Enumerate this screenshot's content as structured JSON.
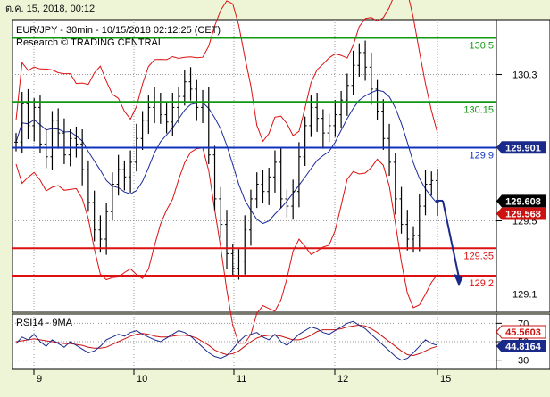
{
  "window": {
    "timestamp": "ต.ค. 15, 2018, 00:12"
  },
  "chart_data": [
    {
      "type": "line",
      "title": "EUR/JPY - 30min - 10/15/2018 02:12:25 (CET)",
      "subtitle": "Research © TRADING CENTRAL",
      "x_ticks": [
        "9",
        "10",
        "11",
        "12",
        "15"
      ],
      "y_ticks": [
        "130.3",
        "129.9",
        "129.5",
        "129.1"
      ],
      "ylim": [
        129.0,
        130.6
      ],
      "levels": [
        {
          "value": 130.5,
          "label": "130.5",
          "color": "#119911"
        },
        {
          "value": 130.15,
          "label": "130.15",
          "color": "#119911"
        },
        {
          "value": 129.9,
          "label": "129.9",
          "color": "#1133bb"
        },
        {
          "value": 129.35,
          "label": "129.35",
          "color": "#dd1111"
        },
        {
          "value": 129.2,
          "label": "129.2",
          "color": "#dd1111"
        }
      ],
      "price_tags": [
        {
          "value": 129.901,
          "label": "129.901",
          "bg": "#1a2a8a",
          "fg": "#ffffff"
        },
        {
          "value": 129.608,
          "label": "129.608",
          "bg": "#000000",
          "fg": "#ffffff"
        },
        {
          "value": 129.568,
          "label": "129.568",
          "bg": "#cc1111",
          "fg": "#ffffff"
        }
      ],
      "close_series": [
        129.93,
        130.14,
        130.02,
        130.12,
        129.92,
        129.85,
        130.05,
        129.98,
        129.86,
        129.95,
        129.92,
        129.78,
        129.6,
        129.45,
        129.4,
        129.55,
        129.7,
        129.78,
        129.74,
        129.82,
        129.95,
        130.05,
        130.12,
        130.15,
        130.08,
        130.04,
        130.12,
        130.18,
        130.26,
        130.22,
        130.12,
        130.15,
        129.86,
        129.62,
        129.48,
        129.32,
        129.24,
        129.28,
        129.45,
        129.62,
        129.7,
        129.66,
        129.74,
        129.82,
        129.62,
        129.58,
        129.66,
        129.85,
        130.02,
        130.12,
        130.06,
        129.98,
        130.02,
        130.08,
        130.16,
        130.24,
        130.35,
        130.42,
        130.34,
        130.22,
        130.1,
        129.95,
        129.82,
        129.62,
        129.48,
        129.4,
        129.42,
        129.58,
        129.7,
        129.72,
        129.6
      ],
      "series": [
        {
          "name": "Price",
          "color": "#000000"
        },
        {
          "name": "MA",
          "color": "#1a2a9a"
        },
        {
          "name": "Bollinger",
          "color": "#dd1111"
        }
      ],
      "forecast": {
        "from": 129.61,
        "to": 129.2,
        "color": "#1a2a8a"
      }
    },
    {
      "type": "line",
      "title": "RSI14 - 9MA",
      "y_ticks": [
        "70",
        "50",
        "30"
      ],
      "ylim": [
        20,
        80
      ],
      "series": [
        {
          "name": "RSI14",
          "color": "#1a2a8a"
        },
        {
          "name": "9MA",
          "color": "#cc1111"
        }
      ],
      "rsi_series": [
        48,
        55,
        52,
        58,
        50,
        45,
        52,
        48,
        44,
        50,
        46,
        42,
        38,
        40,
        45,
        52,
        55,
        58,
        56,
        60,
        62,
        58,
        55,
        52,
        50,
        54,
        58,
        62,
        60,
        56,
        50,
        44,
        38,
        34,
        32,
        35,
        42,
        50,
        56,
        58,
        60,
        55,
        52,
        58,
        50,
        46,
        52,
        58,
        62,
        66,
        64,
        60,
        58,
        62,
        66,
        70,
        72,
        68,
        64,
        58,
        52,
        46,
        40,
        34,
        30,
        32,
        38,
        45,
        52,
        48,
        46
      ],
      "ma_series": [
        50,
        51,
        52,
        53,
        52,
        51,
        50,
        49,
        48,
        48,
        47,
        46,
        44,
        43,
        43,
        44,
        47,
        50,
        53,
        56,
        58,
        59,
        58,
        56,
        55,
        55,
        56,
        57,
        57,
        56,
        54,
        50,
        46,
        41,
        38,
        36,
        37,
        40,
        45,
        50,
        54,
        56,
        57,
        57,
        56,
        54,
        52,
        52,
        54,
        57,
        61,
        63,
        63,
        63,
        64,
        66,
        67,
        68,
        67,
        64,
        60,
        55,
        50,
        45,
        40,
        36,
        35,
        37,
        40,
        43,
        45
      ],
      "value_tags": [
        {
          "label": "45.5603",
          "bg": "#ffffff",
          "fg": "#cc1111"
        },
        {
          "label": "44.8164",
          "bg": "#1a2a8a",
          "fg": "#ffffff"
        }
      ]
    }
  ]
}
